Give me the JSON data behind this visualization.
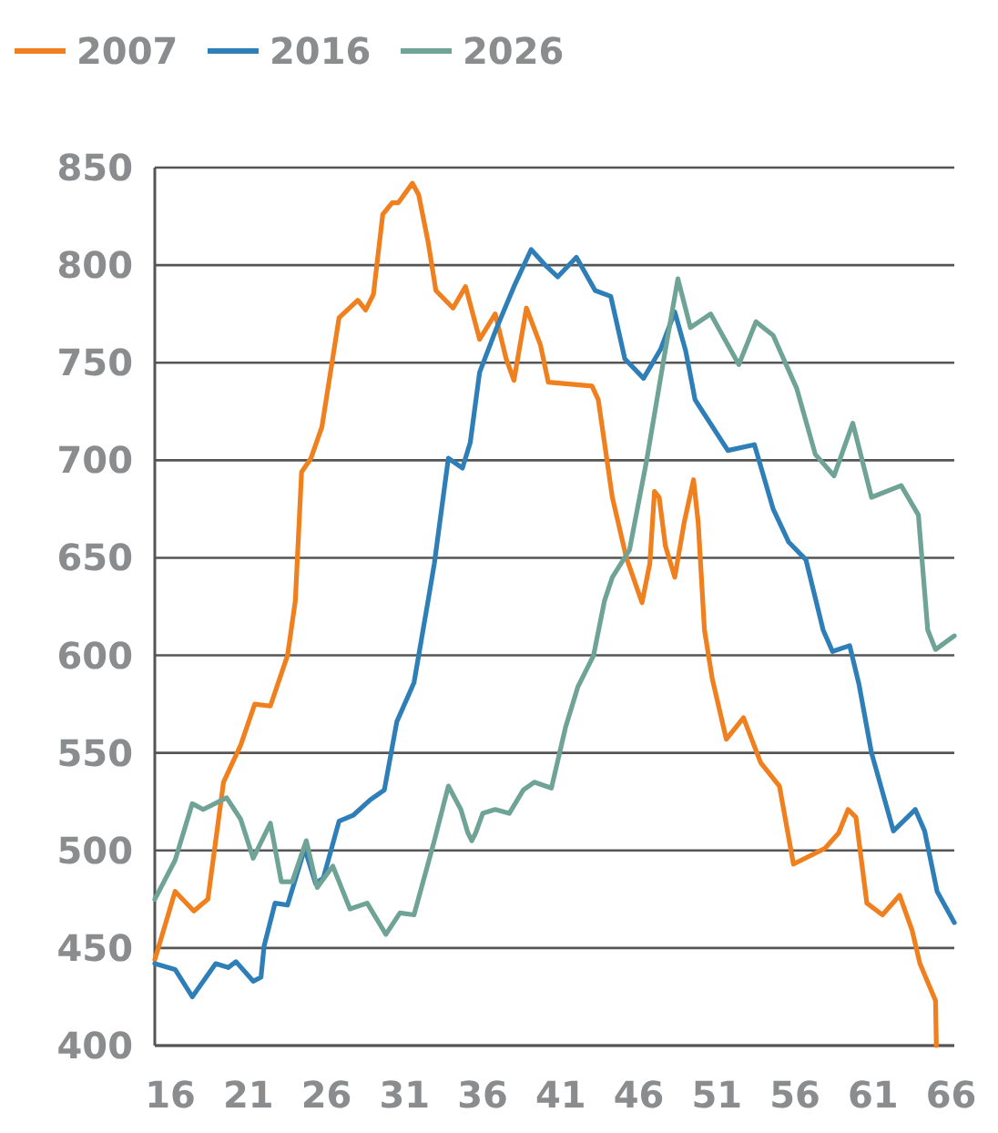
{
  "chart_data": {
    "type": "line",
    "legend": "top left",
    "grid": "y",
    "xlim": [
      15,
      66.2
    ],
    "xticks": [
      16,
      21,
      26,
      31,
      36,
      41,
      46,
      51,
      56,
      61,
      66
    ],
    "ylim": [
      400,
      850
    ],
    "yticks": [
      400,
      450,
      500,
      550,
      600,
      650,
      700,
      750,
      800,
      850
    ],
    "line_style": "solid",
    "marker": "none",
    "series": [
      {
        "name": "2007",
        "color": "#f07f1e",
        "x": [
          15,
          16.3,
          17.5,
          18.4,
          19.4,
          20.5,
          21.4,
          22.4,
          23.5,
          24,
          24.4,
          25,
          25.7,
          26.8,
          28,
          28.5,
          29,
          29.6,
          30.2,
          30.6,
          31.5,
          31.9,
          32.5,
          33,
          34.1,
          34.9,
          35.8,
          36.8,
          37.5,
          38,
          38.8,
          39.7,
          40.2,
          43,
          43.4,
          44.3,
          45.2,
          46.2,
          46.7,
          47,
          47.3,
          47.7,
          48.3,
          48.9,
          49.5,
          49.8,
          50.2,
          50.7,
          51.6,
          52.7,
          53.8,
          55,
          55.9,
          57.9,
          58.8,
          59.4,
          59.9,
          60.6,
          61.6,
          62.7,
          63.5,
          64,
          65,
          65.05
        ],
        "values": [
          444,
          479,
          469,
          475,
          535,
          554,
          575,
          574,
          600,
          628,
          694,
          701,
          717,
          773,
          782,
          777,
          785,
          826,
          832,
          832,
          842,
          836,
          812,
          787,
          778,
          789,
          762,
          775,
          752,
          741,
          778,
          759,
          740,
          738,
          731,
          681,
          650,
          627,
          647,
          684,
          681,
          656,
          640,
          668,
          690,
          668,
          613,
          588,
          557,
          568,
          545,
          533,
          493,
          501,
          509,
          521,
          517,
          473,
          467,
          477,
          459,
          442,
          423,
          400
        ]
      },
      {
        "name": "2016",
        "color": "#2e7fb8",
        "x": [
          15,
          16.3,
          17.4,
          18.9,
          19.7,
          20.2,
          21.3,
          21.8,
          22,
          22.7,
          23.5,
          24.6,
          25.3,
          25.8,
          26.8,
          27.7,
          28.8,
          29.7,
          30.5,
          31.6,
          32.5,
          32.9,
          33.8,
          34.7,
          35.2,
          35.8,
          36.9,
          38,
          39.1,
          40,
          40.8,
          42,
          43.2,
          44.2,
          45.1,
          46.3,
          47.4,
          48.3,
          49,
          49.6,
          51.7,
          53.4,
          54.6,
          55.6,
          56.7,
          57.8,
          58.4,
          59.5,
          60.1,
          60.9,
          62.3,
          63.7,
          64.3,
          65.1,
          66.2
        ],
        "values": [
          442,
          439,
          425,
          442,
          440,
          443,
          433,
          435,
          451,
          473,
          472,
          501,
          483,
          486,
          515,
          518,
          526,
          531,
          566,
          586,
          628,
          647,
          701,
          696,
          709,
          745,
          768,
          789,
          808,
          800,
          794,
          804,
          787,
          784,
          752,
          742,
          757,
          776,
          756,
          731,
          705,
          708,
          675,
          658,
          649,
          613,
          602,
          605,
          585,
          550,
          510,
          521,
          510,
          479,
          463
        ]
      },
      {
        "name": "2026",
        "color": "#6fa396",
        "x": [
          15,
          16.3,
          17.4,
          18.1,
          19.6,
          20.5,
          21.3,
          22.4,
          23.1,
          23.8,
          24.7,
          25.4,
          26.4,
          27.5,
          28.6,
          29.8,
          30.7,
          31.6,
          32.9,
          33.8,
          34.6,
          35.05,
          35.3,
          35.55,
          36,
          36.8,
          37.7,
          38.6,
          39.3,
          40.4,
          41.3,
          42.1,
          43.1,
          43.8,
          44.3,
          45.4,
          46.5,
          47.6,
          48.5,
          49.3,
          50.6,
          52.4,
          53.5,
          54.6,
          56.1,
          57.3,
          58.5,
          59.7,
          60.9,
          62.8,
          63.9,
          64.5,
          65,
          66.2
        ],
        "values": [
          475,
          495,
          524,
          521,
          527,
          516,
          496,
          514,
          484,
          484,
          505,
          481,
          492,
          470,
          473,
          457,
          468,
          467,
          505,
          533,
          521,
          509,
          505,
          509,
          519,
          521,
          519,
          531,
          535,
          532,
          563,
          584,
          600,
          628,
          640,
          654,
          700,
          752,
          793,
          768,
          775,
          749,
          771,
          764,
          737,
          703,
          692,
          719,
          681,
          687,
          672,
          613,
          603,
          610
        ]
      }
    ]
  }
}
